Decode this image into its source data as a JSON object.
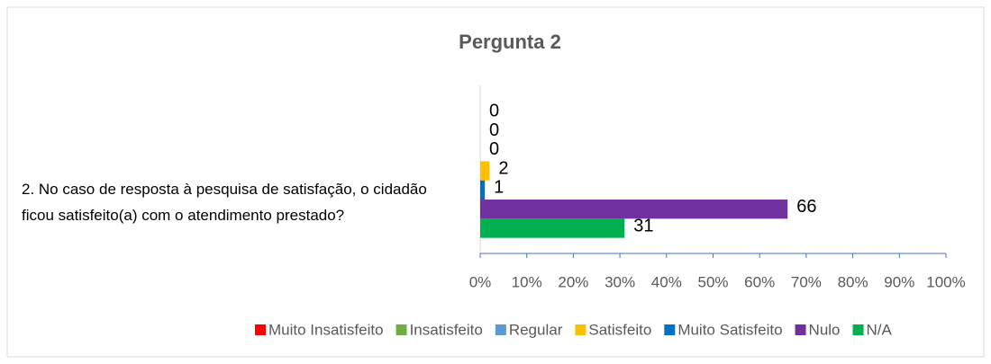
{
  "chart_data": {
    "type": "bar",
    "orientation": "horizontal",
    "title": "Pergunta 2",
    "categories": [
      "2. No caso de resposta à pesquisa de satisfação, o cidadão ficou satisfeito(a) com o atendimento prestado?"
    ],
    "series": [
      {
        "name": "Muito Insatisfeito",
        "color": "#ff0000",
        "values": [
          0
        ]
      },
      {
        "name": "Insatisfeito",
        "color": "#70ad47",
        "values": [
          0
        ]
      },
      {
        "name": "Regular",
        "color": "#5b9bd5",
        "values": [
          0
        ]
      },
      {
        "name": "Satisfeito",
        "color": "#ffc000",
        "values": [
          2
        ]
      },
      {
        "name": "Muito Satisfeito",
        "color": "#0070c0",
        "values": [
          1
        ]
      },
      {
        "name": "Nulo",
        "color": "#7030a0",
        "values": [
          66
        ]
      },
      {
        "name": "N/A",
        "color": "#00b050",
        "values": [
          31
        ]
      }
    ],
    "xlim": [
      0,
      100
    ],
    "xticks": [
      {
        "value": 0,
        "label": "0%"
      },
      {
        "value": 10,
        "label": "10%"
      },
      {
        "value": 20,
        "label": "20%"
      },
      {
        "value": 30,
        "label": "30%"
      },
      {
        "value": 40,
        "label": "40%"
      },
      {
        "value": 50,
        "label": "50%"
      },
      {
        "value": 60,
        "label": "60%"
      },
      {
        "value": 70,
        "label": "70%"
      },
      {
        "value": 80,
        "label": "80%"
      },
      {
        "value": 90,
        "label": "90%"
      },
      {
        "value": 100,
        "label": "100%"
      }
    ],
    "legend": "bottom"
  }
}
